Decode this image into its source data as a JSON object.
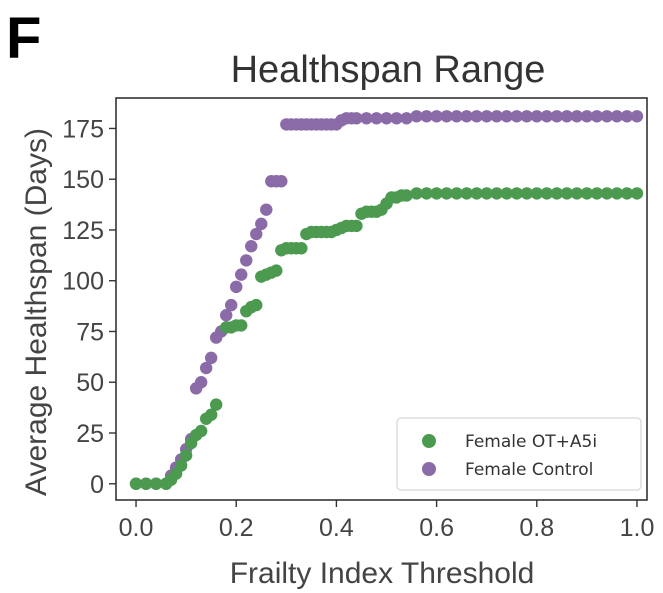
{
  "panel_letter": "F",
  "chart_data": {
    "type": "scatter",
    "title": "Healthspan Range",
    "xlabel": "Frailty Index Threshold",
    "ylabel": "Average Healthspan (Days)",
    "xlim": [
      -0.04,
      1.02
    ],
    "ylim": [
      -8,
      190
    ],
    "xticks": [
      "0.0",
      "0.2",
      "0.4",
      "0.6",
      "0.8",
      "1.0"
    ],
    "yticks": [
      "0",
      "25",
      "50",
      "75",
      "100",
      "125",
      "150",
      "175"
    ],
    "grid": false,
    "legend_position": "lower-right",
    "series": [
      {
        "name": "Female OT+A5i",
        "color": "#4c9a4f",
        "points": [
          [
            0.0,
            0
          ],
          [
            0.02,
            0
          ],
          [
            0.04,
            0
          ],
          [
            0.06,
            0
          ],
          [
            0.07,
            2
          ],
          [
            0.08,
            5
          ],
          [
            0.09,
            9
          ],
          [
            0.1,
            14
          ],
          [
            0.11,
            20
          ],
          [
            0.12,
            24
          ],
          [
            0.13,
            26
          ],
          [
            0.14,
            32
          ],
          [
            0.15,
            34
          ],
          [
            0.16,
            39
          ],
          [
            0.18,
            77
          ],
          [
            0.19,
            77
          ],
          [
            0.2,
            78
          ],
          [
            0.21,
            78
          ],
          [
            0.22,
            85
          ],
          [
            0.23,
            87
          ],
          [
            0.24,
            88
          ],
          [
            0.25,
            102
          ],
          [
            0.26,
            103
          ],
          [
            0.27,
            104
          ],
          [
            0.28,
            105
          ],
          [
            0.29,
            115
          ],
          [
            0.3,
            116
          ],
          [
            0.31,
            116
          ],
          [
            0.32,
            116
          ],
          [
            0.33,
            116
          ],
          [
            0.34,
            123
          ],
          [
            0.35,
            124
          ],
          [
            0.36,
            124
          ],
          [
            0.37,
            124
          ],
          [
            0.38,
            124
          ],
          [
            0.39,
            124
          ],
          [
            0.4,
            125
          ],
          [
            0.41,
            126
          ],
          [
            0.42,
            127
          ],
          [
            0.43,
            127
          ],
          [
            0.44,
            127
          ],
          [
            0.45,
            133
          ],
          [
            0.46,
            134
          ],
          [
            0.47,
            134
          ],
          [
            0.48,
            134
          ],
          [
            0.49,
            135
          ],
          [
            0.5,
            138
          ],
          [
            0.51,
            141
          ],
          [
            0.52,
            141
          ],
          [
            0.53,
            142
          ],
          [
            0.54,
            142
          ],
          [
            0.56,
            143
          ],
          [
            0.58,
            143
          ],
          [
            0.6,
            143
          ],
          [
            0.62,
            143
          ],
          [
            0.64,
            143
          ],
          [
            0.66,
            143
          ],
          [
            0.68,
            143
          ],
          [
            0.7,
            143
          ],
          [
            0.72,
            143
          ],
          [
            0.74,
            143
          ],
          [
            0.76,
            143
          ],
          [
            0.78,
            143
          ],
          [
            0.8,
            143
          ],
          [
            0.82,
            143
          ],
          [
            0.84,
            143
          ],
          [
            0.86,
            143
          ],
          [
            0.88,
            143
          ],
          [
            0.9,
            143
          ],
          [
            0.92,
            143
          ],
          [
            0.94,
            143
          ],
          [
            0.96,
            143
          ],
          [
            0.98,
            143
          ],
          [
            1.0,
            143
          ]
        ]
      },
      {
        "name": "Female Control",
        "color": "#8b6aa8",
        "points": [
          [
            0.0,
            0
          ],
          [
            0.02,
            0
          ],
          [
            0.04,
            0
          ],
          [
            0.06,
            0
          ],
          [
            0.07,
            4
          ],
          [
            0.08,
            8
          ],
          [
            0.09,
            12
          ],
          [
            0.1,
            17
          ],
          [
            0.11,
            22
          ],
          [
            0.12,
            47
          ],
          [
            0.13,
            50
          ],
          [
            0.14,
            57
          ],
          [
            0.15,
            62
          ],
          [
            0.16,
            72
          ],
          [
            0.17,
            75
          ],
          [
            0.18,
            83
          ],
          [
            0.19,
            88
          ],
          [
            0.2,
            97
          ],
          [
            0.21,
            103
          ],
          [
            0.22,
            110
          ],
          [
            0.23,
            117
          ],
          [
            0.24,
            123
          ],
          [
            0.25,
            128
          ],
          [
            0.26,
            135
          ],
          [
            0.27,
            149
          ],
          [
            0.28,
            149
          ],
          [
            0.29,
            149
          ],
          [
            0.3,
            177
          ],
          [
            0.31,
            177
          ],
          [
            0.32,
            177
          ],
          [
            0.33,
            177
          ],
          [
            0.34,
            177
          ],
          [
            0.35,
            177
          ],
          [
            0.36,
            177
          ],
          [
            0.37,
            177
          ],
          [
            0.38,
            177
          ],
          [
            0.39,
            177
          ],
          [
            0.4,
            177
          ],
          [
            0.41,
            179
          ],
          [
            0.42,
            180
          ],
          [
            0.43,
            180
          ],
          [
            0.44,
            180
          ],
          [
            0.46,
            180
          ],
          [
            0.48,
            180
          ],
          [
            0.5,
            180
          ],
          [
            0.52,
            180
          ],
          [
            0.54,
            180
          ],
          [
            0.56,
            181
          ],
          [
            0.58,
            181
          ],
          [
            0.6,
            181
          ],
          [
            0.62,
            181
          ],
          [
            0.64,
            181
          ],
          [
            0.66,
            181
          ],
          [
            0.68,
            181
          ],
          [
            0.7,
            181
          ],
          [
            0.72,
            181
          ],
          [
            0.74,
            181
          ],
          [
            0.76,
            181
          ],
          [
            0.78,
            181
          ],
          [
            0.8,
            181
          ],
          [
            0.82,
            181
          ],
          [
            0.84,
            181
          ],
          [
            0.86,
            181
          ],
          [
            0.88,
            181
          ],
          [
            0.9,
            181
          ],
          [
            0.92,
            181
          ],
          [
            0.94,
            181
          ],
          [
            0.96,
            181
          ],
          [
            0.98,
            181
          ],
          [
            1.0,
            181
          ]
        ]
      }
    ]
  }
}
